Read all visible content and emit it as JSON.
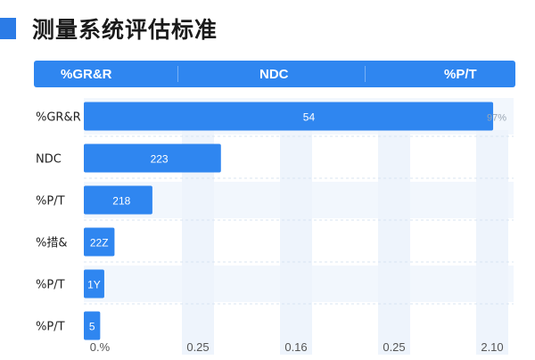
{
  "title": "测量系统评估标准",
  "header": {
    "col1": "%GR&R",
    "col2": "NDC",
    "col3": "%P/T"
  },
  "colors": {
    "accent": "#2b7be6",
    "bar": "#2f86f0",
    "header": "#2f86f0",
    "band": "#f2f7fd"
  },
  "chart_data": {
    "type": "bar",
    "orientation": "horizontal",
    "categories": [
      "%GR&R",
      "NDC",
      "%P/T",
      "%措&",
      "%P/T",
      "%P/T"
    ],
    "values": [
      2.0,
      0.67,
      0.335,
      0.15,
      0.1,
      0.08
    ],
    "data_labels": [
      "54",
      "223",
      "218",
      "22Z",
      "1Y",
      "5"
    ],
    "outside_labels": [
      "97%",
      "",
      "",
      "",
      "",
      ""
    ],
    "x_tick_labels": [
      "0.%",
      "0.25",
      "0.16",
      "0.25",
      "2.10"
    ],
    "xlim": [
      0,
      2.1
    ],
    "grid": true
  }
}
